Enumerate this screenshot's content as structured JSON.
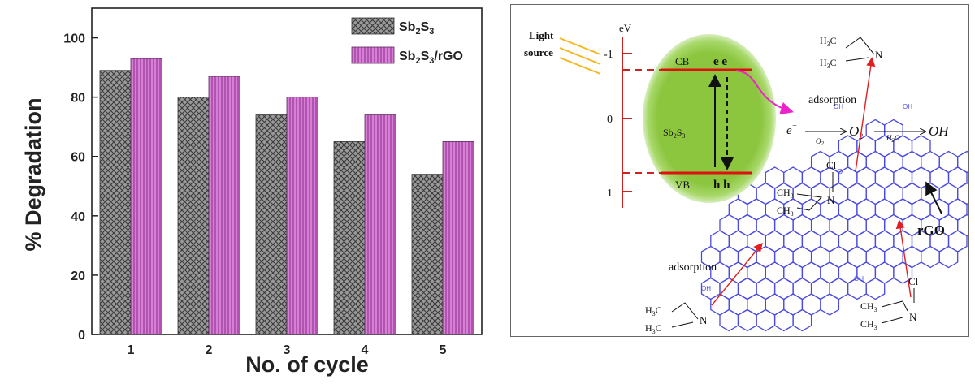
{
  "chart_data": {
    "type": "bar",
    "categories": [
      "1",
      "2",
      "3",
      "4",
      "5"
    ],
    "series": [
      {
        "name": "Sb2S3",
        "values": [
          89,
          80,
          74,
          65,
          54
        ]
      },
      {
        "name": "Sb2S3/rGO",
        "values": [
          93,
          87,
          80,
          74,
          65
        ]
      }
    ],
    "xlabel": "No. of cycle",
    "ylabel": "% Degradation",
    "ylim": [
      0,
      110
    ],
    "yticks": [
      "0",
      "20",
      "40",
      "60",
      "80",
      "100"
    ],
    "legend": {
      "placement": "top-right",
      "entries": [
        {
          "base": "Sb",
          "sub1": "2",
          "mid": "S",
          "sub2": "3",
          "tail": ""
        },
        {
          "base": "Sb",
          "sub1": "2",
          "mid": "S",
          "sub2": "3",
          "tail": "/rGO"
        }
      ]
    },
    "colors": {
      "series_a": "#8a8a8a",
      "series_b": "#cc66cc"
    }
  },
  "diagram": {
    "energy_unit": "eV",
    "energy_ticks": [
      "-1",
      "0",
      "1"
    ],
    "light_source": [
      "Light",
      "source"
    ],
    "cb_label": "CB",
    "vb_label": "VB",
    "electrons": "e e",
    "holes": "h h",
    "semiconductor": {
      "base": "Sb",
      "sub1": "2",
      "mid": "S",
      "sub2": "3"
    },
    "adsorption_label": "adsorption",
    "electron_symbol": "e",
    "o2_label": "O",
    "o2_sub": "2",
    "superoxide": "O",
    "superoxide_sub": "2",
    "h2o_label": "H",
    "h2o_sub": "2",
    "h2o_tail": "O",
    "hydroxyl": "OH",
    "rgo_label": "rGO",
    "oh_group": "OH",
    "ch3": "CH",
    "ch3_sub": "3",
    "h3c": "H",
    "h3c_sub": "3",
    "h3c_tail": "C",
    "n_atom": "N",
    "cl_atom": "Cl"
  }
}
